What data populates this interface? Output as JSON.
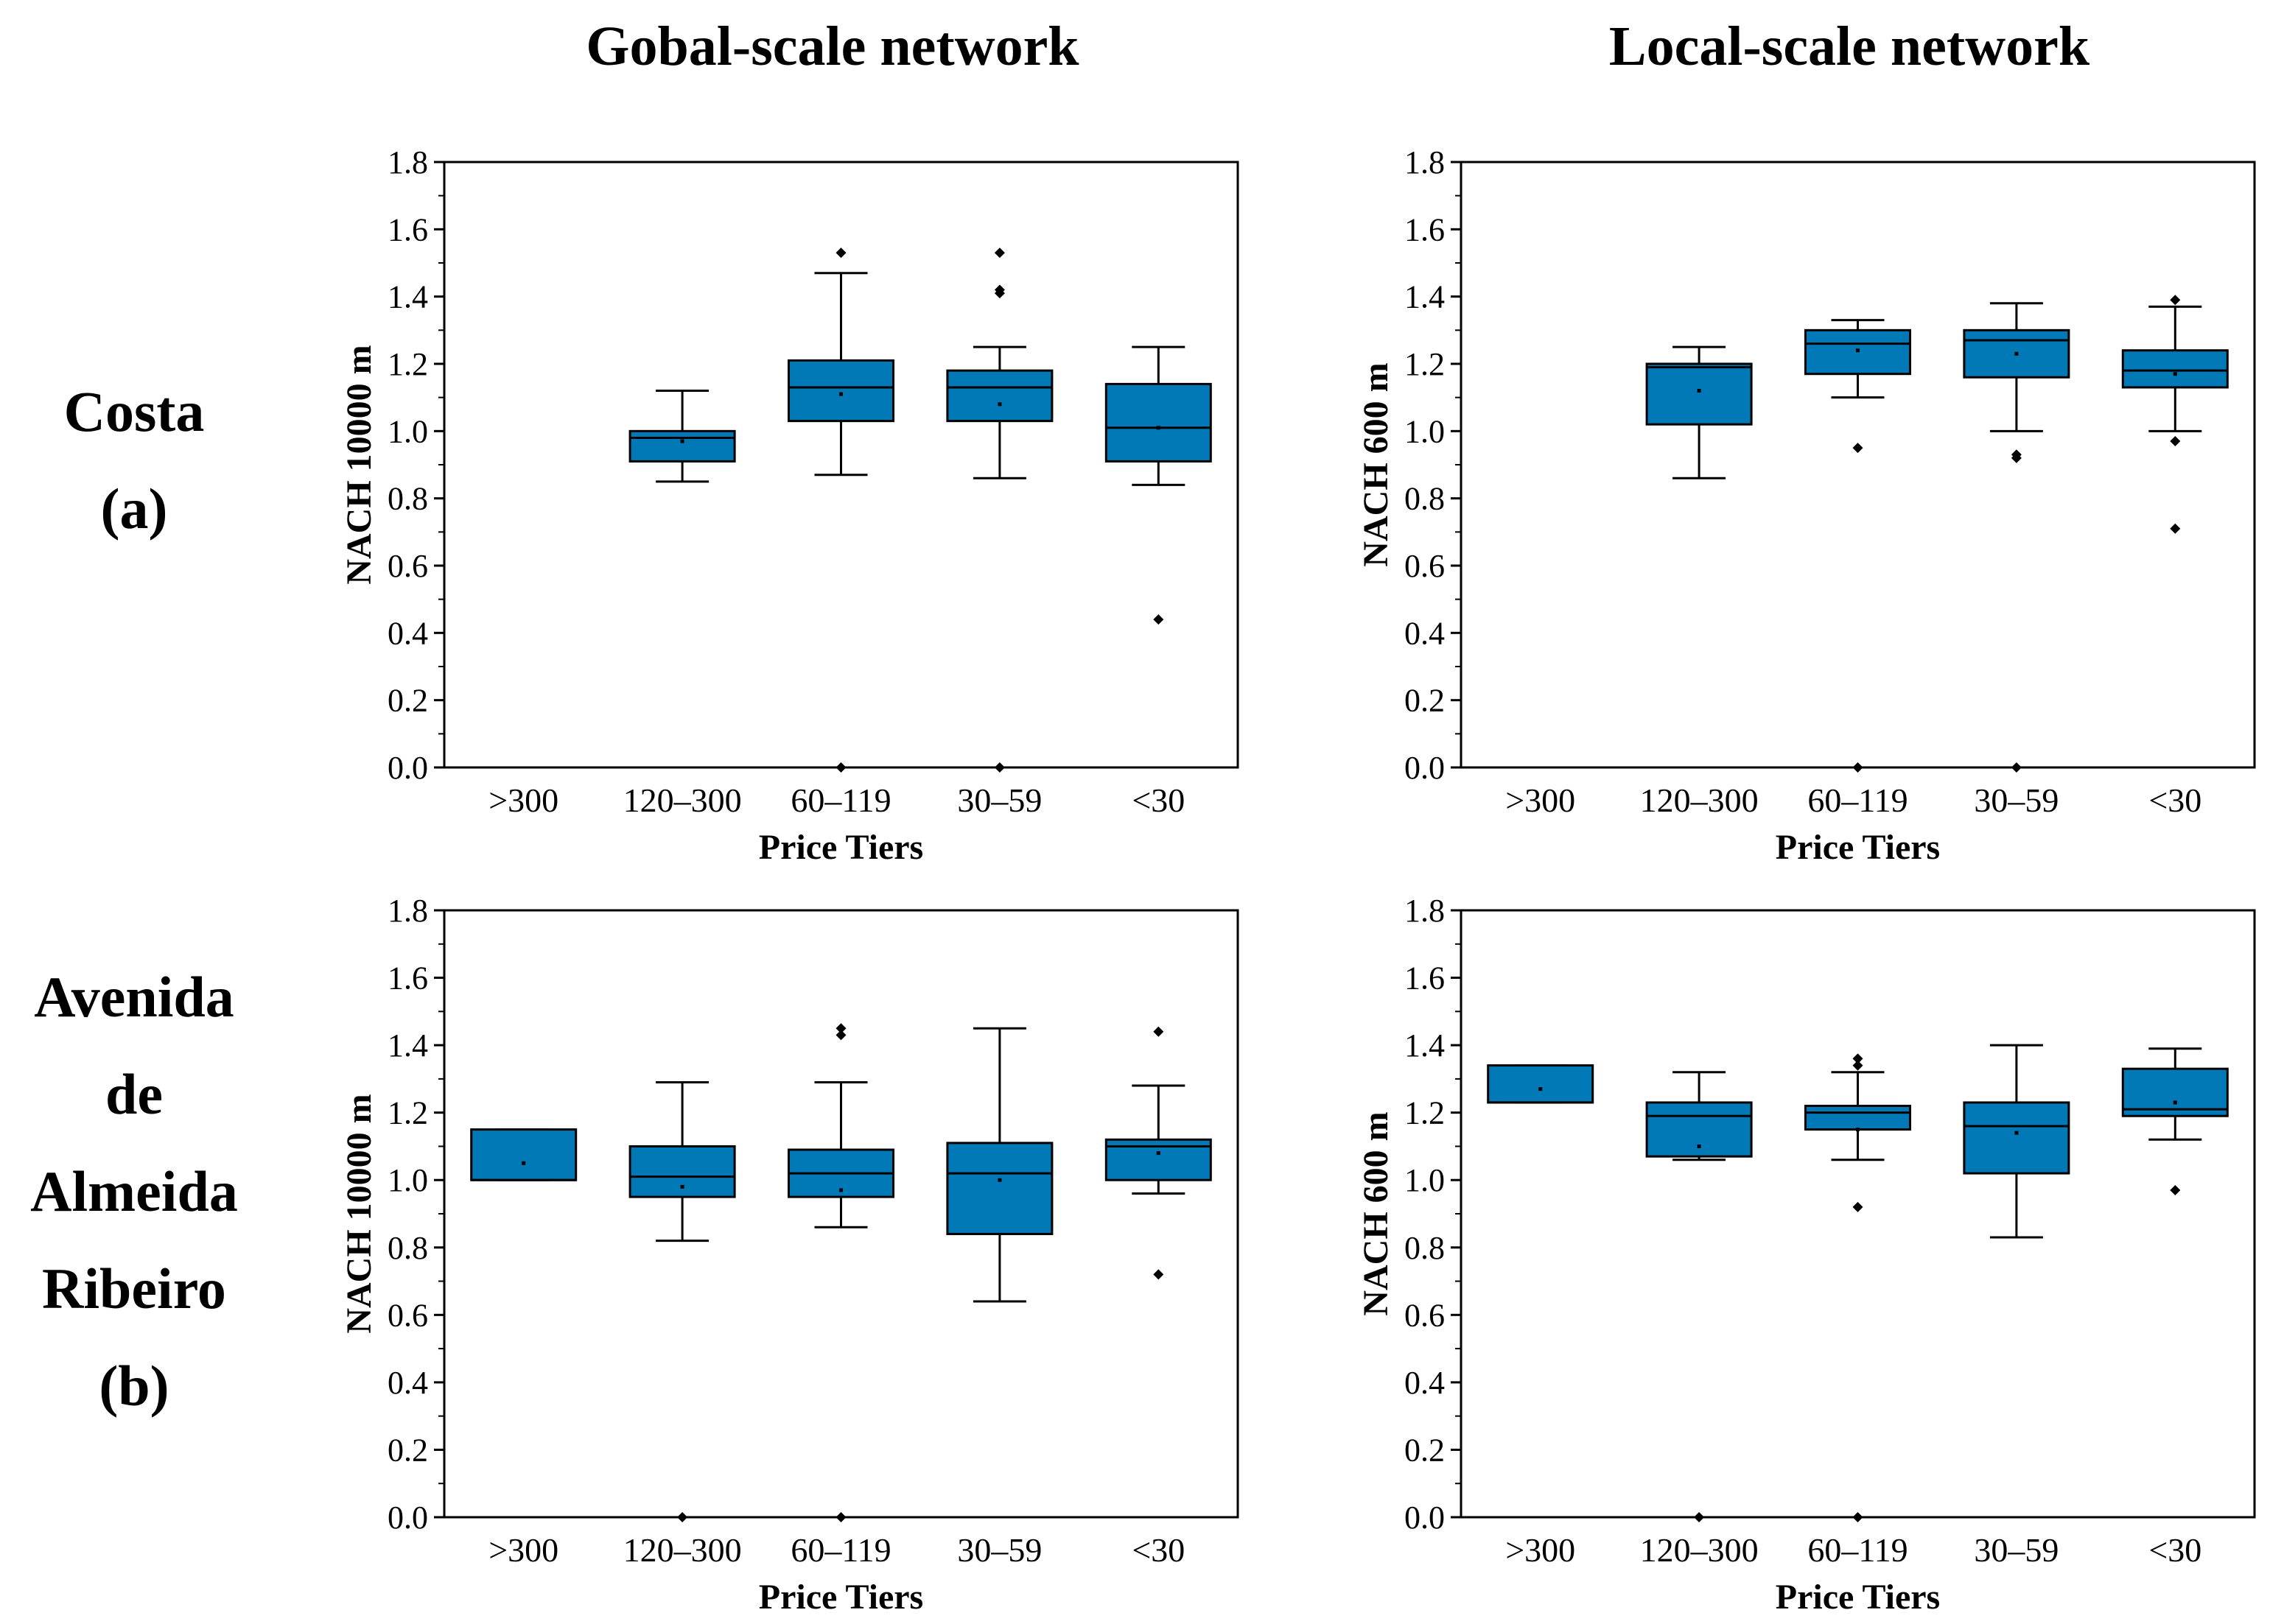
{
  "column_titles": [
    "Gobal-scale network",
    "Local-scale network"
  ],
  "row_labels": [
    [
      "Costa",
      "(a)"
    ],
    [
      "Avenida",
      "de",
      "Almeida",
      "Ribeiro",
      "(b)"
    ]
  ],
  "colors": {
    "box_fill": "#0079b6",
    "stroke": "#000000",
    "background": "#ffffff"
  },
  "chart_data": [
    {
      "type": "box",
      "panel": "Costa (a) - Gobal-scale network",
      "xlabel": "Price Tiers",
      "ylabel": "NACH 10000 m",
      "categories": [
        ">300",
        "120–300",
        "60–119",
        "30–59",
        "<30"
      ],
      "ylim": [
        0,
        1.8
      ],
      "yticks": [
        "0.0",
        "0.2",
        "0.4",
        "0.6",
        "0.8",
        "1.0",
        "1.2",
        "1.4",
        "1.6",
        "1.8"
      ],
      "boxes": [
        null,
        {
          "q1": 0.91,
          "median": 0.98,
          "q3": 1.0,
          "whisker_low": 0.85,
          "whisker_high": 1.12,
          "mean": 0.97,
          "outliers": []
        },
        {
          "q1": 1.03,
          "median": 1.13,
          "q3": 1.21,
          "whisker_low": 0.87,
          "whisker_high": 1.47,
          "mean": 1.11,
          "outliers": [
            1.53,
            0.0
          ]
        },
        {
          "q1": 1.03,
          "median": 1.13,
          "q3": 1.18,
          "whisker_low": 0.86,
          "whisker_high": 1.25,
          "mean": 1.08,
          "outliers": [
            1.53,
            1.42,
            1.41,
            0.0
          ]
        },
        {
          "q1": 0.91,
          "median": 1.01,
          "q3": 1.14,
          "whisker_low": 0.84,
          "whisker_high": 1.25,
          "mean": 1.01,
          "outliers": [
            0.44
          ]
        }
      ]
    },
    {
      "type": "box",
      "panel": "Costa (a) - Local-scale network",
      "xlabel": "Price Tiers",
      "ylabel": "NACH 600 m",
      "categories": [
        ">300",
        "120–300",
        "60–119",
        "30–59",
        "<30"
      ],
      "ylim": [
        0,
        1.8
      ],
      "yticks": [
        "0.0",
        "0.2",
        "0.4",
        "0.6",
        "0.8",
        "1.0",
        "1.2",
        "1.4",
        "1.6",
        "1.8"
      ],
      "boxes": [
        null,
        {
          "q1": 1.02,
          "median": 1.19,
          "q3": 1.2,
          "whisker_low": 0.86,
          "whisker_high": 1.25,
          "mean": 1.12,
          "outliers": []
        },
        {
          "q1": 1.17,
          "median": 1.26,
          "q3": 1.3,
          "whisker_low": 1.1,
          "whisker_high": 1.33,
          "mean": 1.24,
          "outliers": [
            0.95,
            0.0
          ]
        },
        {
          "q1": 1.16,
          "median": 1.27,
          "q3": 1.3,
          "whisker_low": 1.0,
          "whisker_high": 1.38,
          "mean": 1.23,
          "outliers": [
            0.93,
            0.92,
            0.0
          ]
        },
        {
          "q1": 1.13,
          "median": 1.18,
          "q3": 1.24,
          "whisker_low": 1.0,
          "whisker_high": 1.37,
          "mean": 1.17,
          "outliers": [
            1.39,
            0.97,
            0.71
          ]
        }
      ]
    },
    {
      "type": "box",
      "panel": "Avenida de Almeida Ribeiro (b) - Gobal-scale network",
      "xlabel": "Price Tiers",
      "ylabel": "NACH 10000 m",
      "categories": [
        ">300",
        "120–300",
        "60–119",
        "30–59",
        "<30"
      ],
      "ylim": [
        0,
        1.8
      ],
      "yticks": [
        "0.0",
        "0.2",
        "0.4",
        "0.6",
        "0.8",
        "1.0",
        "1.2",
        "1.4",
        "1.6",
        "1.8"
      ],
      "boxes": [
        {
          "q1": 1.0,
          "median": 1.0,
          "q3": 1.15,
          "whisker_low": 1.0,
          "whisker_high": 1.15,
          "mean": 1.05,
          "outliers": []
        },
        {
          "q1": 0.95,
          "median": 1.01,
          "q3": 1.1,
          "whisker_low": 0.82,
          "whisker_high": 1.29,
          "mean": 0.98,
          "outliers": [
            0.0
          ]
        },
        {
          "q1": 0.95,
          "median": 1.02,
          "q3": 1.09,
          "whisker_low": 0.86,
          "whisker_high": 1.29,
          "mean": 0.97,
          "outliers": [
            1.45,
            1.43,
            0.0
          ]
        },
        {
          "q1": 0.84,
          "median": 1.02,
          "q3": 1.11,
          "whisker_low": 0.64,
          "whisker_high": 1.45,
          "mean": 1.0,
          "outliers": []
        },
        {
          "q1": 1.0,
          "median": 1.1,
          "q3": 1.12,
          "whisker_low": 0.96,
          "whisker_high": 1.28,
          "mean": 1.08,
          "outliers": [
            1.44,
            0.72
          ]
        }
      ]
    },
    {
      "type": "box",
      "panel": "Avenida de Almeida Ribeiro (b) - Local-scale network",
      "xlabel": "Price Tiers",
      "ylabel": "NACH 600 m",
      "categories": [
        ">300",
        "120–300",
        "60–119",
        "30–59",
        "<30"
      ],
      "ylim": [
        0,
        1.8
      ],
      "yticks": [
        "0.0",
        "0.2",
        "0.4",
        "0.6",
        "0.8",
        "1.0",
        "1.2",
        "1.4",
        "1.6",
        "1.8"
      ],
      "boxes": [
        {
          "q1": 1.23,
          "median": 1.23,
          "q3": 1.34,
          "whisker_low": 1.23,
          "whisker_high": 1.34,
          "mean": 1.27,
          "outliers": []
        },
        {
          "q1": 1.07,
          "median": 1.19,
          "q3": 1.23,
          "whisker_low": 1.06,
          "whisker_high": 1.32,
          "mean": 1.1,
          "outliers": [
            0.0
          ]
        },
        {
          "q1": 1.15,
          "median": 1.2,
          "q3": 1.22,
          "whisker_low": 1.06,
          "whisker_high": 1.32,
          "mean": 1.15,
          "outliers": [
            1.36,
            1.34,
            0.92,
            0.0
          ]
        },
        {
          "q1": 1.02,
          "median": 1.16,
          "q3": 1.23,
          "whisker_low": 0.83,
          "whisker_high": 1.4,
          "mean": 1.14,
          "outliers": []
        },
        {
          "q1": 1.19,
          "median": 1.21,
          "q3": 1.33,
          "whisker_low": 1.12,
          "whisker_high": 1.39,
          "mean": 1.23,
          "outliers": [
            0.97
          ]
        }
      ]
    }
  ]
}
